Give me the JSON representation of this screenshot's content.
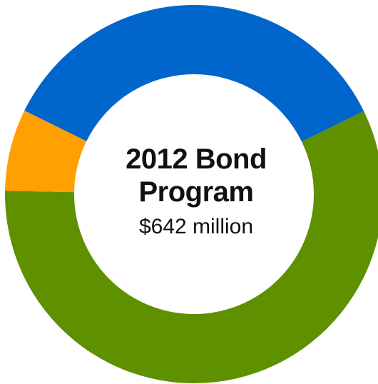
{
  "chart_data": {
    "type": "pie",
    "style": "donut",
    "title": "2012 Bond Program",
    "subtitle": "$642 million",
    "slices": [
      {
        "color": "#5e9000",
        "value": 57.5
      },
      {
        "color": "#0066cc",
        "value": 35.5
      },
      {
        "color": "#ff9f00",
        "value": 7.0
      }
    ]
  }
}
